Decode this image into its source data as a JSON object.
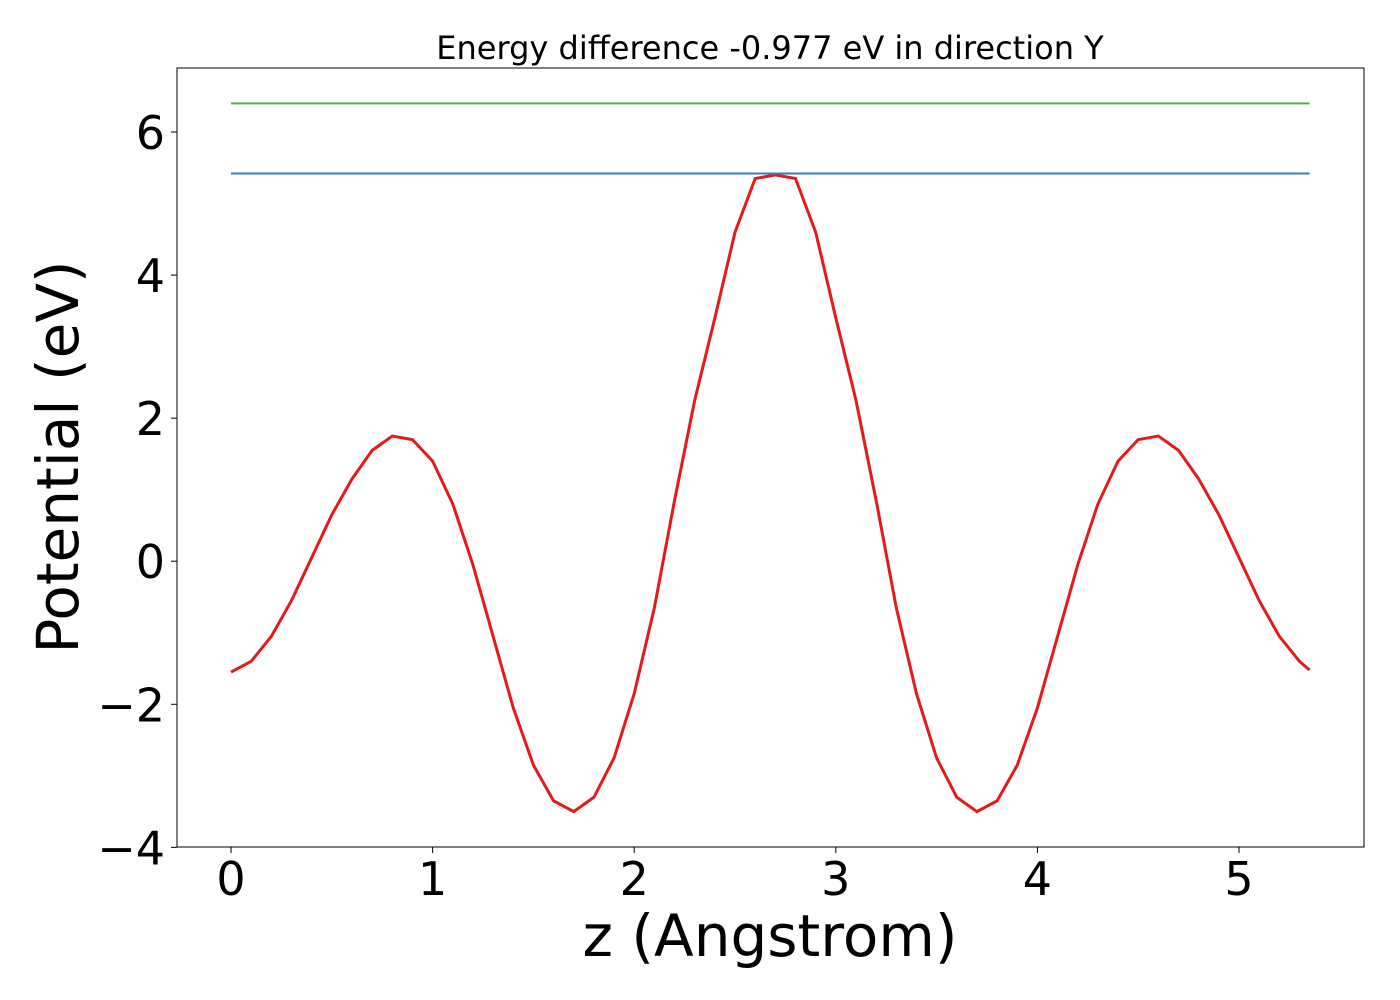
{
  "chart_data": {
    "type": "line",
    "title": "Energy difference -0.977 eV in direction Y",
    "x_label": "z (Angstrom)",
    "y_label": "Potential (eV)",
    "xlim": [
      -0.268,
      5.62
    ],
    "ylim": [
      -3.995,
      6.895
    ],
    "xticks": [
      0,
      1,
      2,
      3,
      4,
      5
    ],
    "yticks": [
      {
        "value": -4,
        "label": "−4"
      },
      {
        "value": -2,
        "label": "−2"
      },
      0,
      2,
      4,
      6
    ],
    "series": [
      {
        "color": "#e41a1c",
        "x": [
          0,
          0.1,
          0.2,
          0.3,
          0.4,
          0.5,
          0.6,
          0.7,
          0.8,
          0.9,
          1.0,
          1.1,
          1.2,
          1.3,
          1.4,
          1.5,
          1.6,
          1.7,
          1.8,
          1.9,
          2.0,
          2.1,
          2.2,
          2.3,
          2.4,
          2.5,
          2.6,
          2.7,
          2.8,
          2.9,
          3.0,
          3.1,
          3.2,
          3.3,
          3.4,
          3.5,
          3.6,
          3.7,
          3.8,
          3.9,
          4.0,
          4.1,
          4.2,
          4.3,
          4.4,
          4.5,
          4.6,
          4.7,
          4.8,
          4.9,
          5.0,
          5.1,
          5.2,
          5.3,
          5.35
        ],
        "values": [
          -1.55,
          -1.4,
          -1.05,
          -0.55,
          0.05,
          0.65,
          1.15,
          1.55,
          1.75,
          1.7,
          1.4,
          0.8,
          -0.05,
          -1.05,
          -2.05,
          -2.85,
          -3.35,
          -3.5,
          -3.3,
          -2.75,
          -1.85,
          -0.65,
          0.85,
          2.25,
          3.4,
          4.6,
          5.35,
          5.4,
          5.35,
          4.6,
          3.4,
          2.25,
          0.85,
          -0.65,
          -1.85,
          -2.75,
          -3.3,
          -3.5,
          -3.35,
          -2.85,
          -2.05,
          -1.05,
          -0.05,
          0.8,
          1.4,
          1.7,
          1.75,
          1.55,
          1.15,
          0.65,
          0.05,
          -0.55,
          -1.05,
          -1.4,
          -1.52
        ]
      },
      {
        "color": "#377eb8",
        "x": [
          0,
          5.35
        ],
        "values": [
          5.42,
          5.42
        ]
      },
      {
        "color": "#4daf4a",
        "x": [
          0,
          5.35
        ],
        "values": [
          6.4,
          6.4
        ]
      }
    ]
  }
}
